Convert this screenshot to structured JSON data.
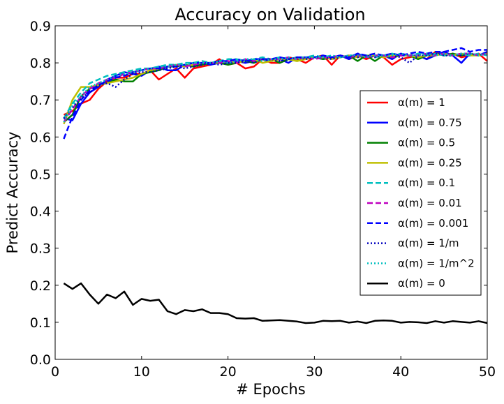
{
  "chart_data": {
    "type": "line",
    "title": "Accuracy on Validation",
    "xlabel": "# Epochs",
    "ylabel": "Predict Accuracy",
    "xlim": [
      0,
      50
    ],
    "ylim": [
      0.0,
      0.9
    ],
    "xticks": [
      0,
      10,
      20,
      30,
      40,
      50
    ],
    "yticks": [
      0.0,
      0.1,
      0.2,
      0.3,
      0.4,
      0.5,
      0.6,
      0.7,
      0.8,
      0.9
    ],
    "xtick_labels": [
      "0",
      "10",
      "20",
      "30",
      "40",
      "50"
    ],
    "ytick_labels": [
      "0.0",
      "0.1",
      "0.2",
      "0.3",
      "0.4",
      "0.5",
      "0.6",
      "0.7",
      "0.8",
      "0.9"
    ],
    "grid": false,
    "legend_position": "center-right",
    "legend_prefix": "α(m) = ",
    "x": [
      1,
      2,
      3,
      4,
      5,
      6,
      7,
      8,
      9,
      10,
      11,
      12,
      13,
      14,
      15,
      16,
      17,
      18,
      19,
      20,
      21,
      22,
      23,
      24,
      25,
      26,
      27,
      28,
      29,
      30,
      31,
      32,
      33,
      34,
      35,
      36,
      37,
      38,
      39,
      40,
      41,
      42,
      43,
      44,
      45,
      46,
      47,
      48,
      49,
      50
    ],
    "series": [
      {
        "name": "1",
        "color": "#ff0000",
        "dash": "solid",
        "values": [
          0.66,
          0.67,
          0.69,
          0.7,
          0.73,
          0.75,
          0.76,
          0.76,
          0.77,
          0.77,
          0.78,
          0.755,
          0.77,
          0.785,
          0.76,
          0.785,
          0.79,
          0.795,
          0.81,
          0.795,
          0.8,
          0.785,
          0.79,
          0.81,
          0.8,
          0.8,
          0.815,
          0.81,
          0.8,
          0.815,
          0.82,
          0.795,
          0.82,
          0.81,
          0.82,
          0.81,
          0.82,
          0.815,
          0.795,
          0.81,
          0.815,
          0.82,
          0.81,
          0.83,
          0.82,
          0.825,
          0.815,
          0.82,
          0.825,
          0.805
        ]
      },
      {
        "name": "0.75",
        "color": "#0000ff",
        "dash": "solid",
        "values": [
          0.65,
          0.645,
          0.69,
          0.72,
          0.735,
          0.755,
          0.765,
          0.775,
          0.77,
          0.765,
          0.78,
          0.79,
          0.78,
          0.78,
          0.795,
          0.79,
          0.8,
          0.795,
          0.8,
          0.8,
          0.805,
          0.8,
          0.805,
          0.81,
          0.805,
          0.81,
          0.8,
          0.815,
          0.81,
          0.815,
          0.81,
          0.815,
          0.82,
          0.81,
          0.825,
          0.815,
          0.82,
          0.82,
          0.81,
          0.825,
          0.82,
          0.82,
          0.81,
          0.82,
          0.83,
          0.82,
          0.8,
          0.825,
          0.82,
          0.83
        ]
      },
      {
        "name": "0.5",
        "color": "#008000",
        "dash": "solid",
        "values": [
          0.64,
          0.66,
          0.71,
          0.73,
          0.74,
          0.745,
          0.755,
          0.75,
          0.75,
          0.77,
          0.775,
          0.78,
          0.79,
          0.79,
          0.795,
          0.79,
          0.795,
          0.8,
          0.8,
          0.795,
          0.8,
          0.805,
          0.8,
          0.81,
          0.81,
          0.8,
          0.81,
          0.805,
          0.815,
          0.815,
          0.81,
          0.815,
          0.815,
          0.82,
          0.805,
          0.82,
          0.805,
          0.82,
          0.815,
          0.82,
          0.82,
          0.81,
          0.82,
          0.825,
          0.82,
          0.825,
          0.82,
          0.825,
          0.82,
          0.825
        ]
      },
      {
        "name": "0.25",
        "color": "#bfbf00",
        "dash": "solid",
        "values": [
          0.635,
          0.7,
          0.735,
          0.735,
          0.74,
          0.745,
          0.75,
          0.755,
          0.76,
          0.77,
          0.78,
          0.785,
          0.79,
          0.795,
          0.79,
          0.795,
          0.8,
          0.8,
          0.8,
          0.805,
          0.8,
          0.805,
          0.81,
          0.8,
          0.805,
          0.81,
          0.81,
          0.805,
          0.81,
          0.815,
          0.815,
          0.81,
          0.815,
          0.82,
          0.815,
          0.82,
          0.82,
          0.815,
          0.82,
          0.82,
          0.82,
          0.815,
          0.82,
          0.82,
          0.825,
          0.82,
          0.825,
          0.82,
          0.82,
          0.825
        ]
      },
      {
        "name": "0.1",
        "color": "#00bfbf",
        "dash": "dashed",
        "values": [
          0.65,
          0.69,
          0.72,
          0.745,
          0.755,
          0.765,
          0.77,
          0.775,
          0.78,
          0.785,
          0.785,
          0.79,
          0.795,
          0.795,
          0.8,
          0.8,
          0.805,
          0.8,
          0.805,
          0.81,
          0.81,
          0.805,
          0.81,
          0.815,
          0.81,
          0.815,
          0.81,
          0.815,
          0.815,
          0.82,
          0.815,
          0.82,
          0.815,
          0.82,
          0.82,
          0.82,
          0.815,
          0.82,
          0.825,
          0.82,
          0.82,
          0.825,
          0.82,
          0.825,
          0.82,
          0.82,
          0.825,
          0.82,
          0.825,
          0.82
        ]
      },
      {
        "name": "0.01",
        "color": "#bf00bf",
        "dash": "dashed",
        "values": [
          0.64,
          0.675,
          0.71,
          0.73,
          0.745,
          0.755,
          0.76,
          0.77,
          0.775,
          0.78,
          0.785,
          0.785,
          0.79,
          0.795,
          0.79,
          0.795,
          0.8,
          0.8,
          0.8,
          0.805,
          0.8,
          0.81,
          0.805,
          0.81,
          0.81,
          0.81,
          0.815,
          0.81,
          0.815,
          0.81,
          0.815,
          0.815,
          0.82,
          0.815,
          0.82,
          0.815,
          0.82,
          0.82,
          0.815,
          0.82,
          0.82,
          0.82,
          0.825,
          0.82,
          0.825,
          0.82,
          0.825,
          0.825,
          0.82,
          0.825
        ]
      },
      {
        "name": "0.001",
        "color": "#0000ff",
        "dash": "dashed",
        "values": [
          0.595,
          0.655,
          0.7,
          0.725,
          0.74,
          0.75,
          0.76,
          0.765,
          0.775,
          0.78,
          0.785,
          0.785,
          0.79,
          0.79,
          0.795,
          0.8,
          0.8,
          0.8,
          0.805,
          0.805,
          0.81,
          0.805,
          0.81,
          0.81,
          0.81,
          0.815,
          0.81,
          0.815,
          0.815,
          0.815,
          0.82,
          0.815,
          0.82,
          0.815,
          0.825,
          0.82,
          0.825,
          0.82,
          0.825,
          0.82,
          0.825,
          0.83,
          0.825,
          0.83,
          0.83,
          0.835,
          0.84,
          0.83,
          0.835,
          0.835
        ]
      },
      {
        "name": "1/m",
        "color": "#0000bf",
        "dash": "dotted",
        "values": [
          0.65,
          0.68,
          0.705,
          0.72,
          0.74,
          0.745,
          0.735,
          0.755,
          0.77,
          0.775,
          0.775,
          0.78,
          0.785,
          0.79,
          0.785,
          0.79,
          0.795,
          0.8,
          0.795,
          0.8,
          0.8,
          0.805,
          0.8,
          0.81,
          0.81,
          0.805,
          0.81,
          0.815,
          0.81,
          0.815,
          0.815,
          0.81,
          0.815,
          0.82,
          0.815,
          0.82,
          0.815,
          0.82,
          0.82,
          0.815,
          0.8,
          0.82,
          0.82,
          0.825,
          0.82,
          0.82,
          0.82,
          0.825,
          0.82,
          0.825
        ]
      },
      {
        "name": "1/m^2",
        "color": "#00bfbf",
        "dash": "dotted",
        "values": [
          0.64,
          0.685,
          0.71,
          0.735,
          0.745,
          0.755,
          0.765,
          0.77,
          0.775,
          0.78,
          0.785,
          0.79,
          0.79,
          0.795,
          0.795,
          0.8,
          0.8,
          0.8,
          0.805,
          0.8,
          0.805,
          0.81,
          0.81,
          0.805,
          0.81,
          0.81,
          0.815,
          0.81,
          0.815,
          0.815,
          0.815,
          0.82,
          0.815,
          0.82,
          0.82,
          0.815,
          0.82,
          0.82,
          0.82,
          0.825,
          0.82,
          0.82,
          0.825,
          0.82,
          0.825,
          0.82,
          0.825,
          0.825,
          0.82,
          0.825
        ]
      },
      {
        "name": "0",
        "color": "#000000",
        "dash": "solid",
        "values": [
          0.205,
          0.19,
          0.205,
          0.175,
          0.15,
          0.175,
          0.165,
          0.183,
          0.147,
          0.163,
          0.158,
          0.161,
          0.13,
          0.122,
          0.133,
          0.13,
          0.135,
          0.125,
          0.125,
          0.122,
          0.111,
          0.11,
          0.111,
          0.104,
          0.105,
          0.106,
          0.104,
          0.102,
          0.098,
          0.099,
          0.104,
          0.103,
          0.104,
          0.099,
          0.102,
          0.098,
          0.104,
          0.105,
          0.104,
          0.099,
          0.101,
          0.1,
          0.098,
          0.103,
          0.099,
          0.103,
          0.101,
          0.099,
          0.103,
          0.098
        ]
      }
    ]
  }
}
